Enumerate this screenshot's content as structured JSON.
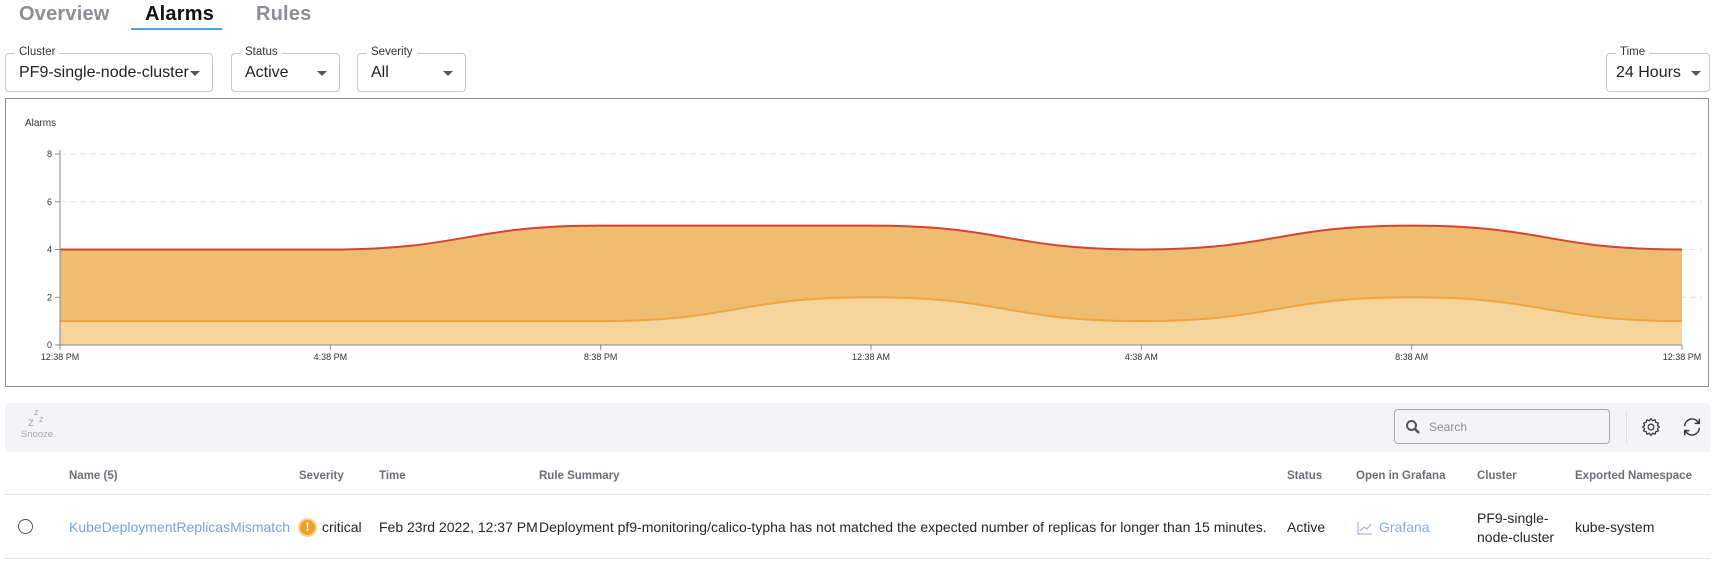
{
  "tabs": [
    {
      "label": "Overview",
      "active": false
    },
    {
      "label": "Alarms",
      "active": true
    },
    {
      "label": "Rules",
      "active": false
    }
  ],
  "filters": {
    "cluster": {
      "label": "Cluster",
      "value": "PF9-single-node-cluster"
    },
    "status": {
      "label": "Status",
      "value": "Active"
    },
    "severity": {
      "label": "Severity",
      "value": "All"
    },
    "time": {
      "label": "Time",
      "value": "24 Hours"
    }
  },
  "chart_data": {
    "type": "area",
    "title": "Alarms",
    "categories": [
      "12:38 PM",
      "4:38 PM",
      "8:38 PM",
      "12:38 AM",
      "4:38 AM",
      "8:38 AM",
      "12:38 PM"
    ],
    "series": [
      {
        "values": [
          4,
          4,
          5,
          5,
          4,
          5,
          4
        ],
        "line_color": "#d9412e",
        "fill_color": "#efbd72"
      },
      {
        "values": [
          1,
          1,
          1,
          2,
          1,
          2,
          1
        ],
        "line_color": "#f0a43a",
        "fill_color": "#f4d59d"
      }
    ],
    "yticks": [
      0,
      2,
      4,
      6,
      8
    ],
    "ylim": [
      0,
      8
    ],
    "grid": "horizontal dashed"
  },
  "toolbar": {
    "snooze_label": "Snooze",
    "search_placeholder": "Search"
  },
  "table": {
    "columns": [
      "Name (5)",
      "Severity",
      "Time",
      "Rule Summary",
      "Status",
      "Open in Grafana",
      "Cluster",
      "Exported Namespace"
    ],
    "rows": [
      {
        "name": "KubeDeploymentReplicasMismatch",
        "severity": "critical",
        "time": "Feb 23rd 2022, 12:37 PM",
        "summary": "Deployment pf9-monitoring/calico-typha has not matched the expected number of replicas for longer than 15 minutes.",
        "status": "Active",
        "grafana": "Grafana",
        "cluster_line1": "PF9-single-",
        "cluster_line2": "node-cluster",
        "namespace": "kube-system"
      }
    ]
  },
  "colors": {
    "accent": "#4aa3df",
    "link": "#7a9fe6",
    "critical": "#f0a02a"
  }
}
